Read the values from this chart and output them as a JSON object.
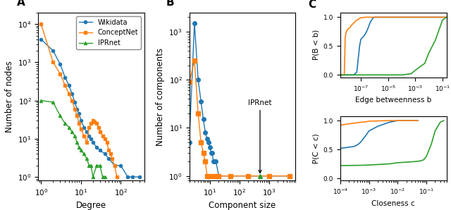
{
  "colors": {
    "wikidata": "#1f77b4",
    "conceptnet": "#ff7f0e",
    "iprnet": "#2ca02c"
  },
  "panel_A": {
    "wikidata_x": [
      1,
      2,
      3,
      4,
      5,
      6,
      7,
      8,
      9,
      10,
      12,
      14,
      16,
      18,
      20,
      25,
      30,
      40,
      50,
      70,
      100,
      150,
      200,
      300
    ],
    "wikidata_y": [
      4000,
      2000,
      900,
      400,
      250,
      150,
      90,
      60,
      45,
      30,
      20,
      15,
      12,
      10,
      8,
      6,
      5,
      4,
      3,
      2,
      2,
      1,
      1,
      1
    ],
    "conceptnet_x": [
      1,
      2,
      3,
      4,
      5,
      6,
      7,
      8,
      9,
      10,
      12,
      14,
      16,
      18,
      20,
      22,
      25,
      28,
      30,
      35,
      40,
      45,
      50,
      55,
      60,
      70,
      80
    ],
    "conceptnet_y": [
      10000,
      1000,
      500,
      250,
      150,
      100,
      60,
      40,
      25,
      18,
      12,
      8,
      20,
      25,
      30,
      28,
      25,
      20,
      15,
      12,
      10,
      8,
      5,
      4,
      3,
      2,
      1
    ],
    "iprnet_x": [
      1,
      2,
      3,
      4,
      5,
      6,
      7,
      8,
      9,
      10,
      12,
      14,
      16,
      18,
      20,
      25,
      30,
      35,
      40
    ],
    "iprnet_y": [
      100,
      90,
      40,
      25,
      20,
      15,
      12,
      8,
      6,
      5,
      4,
      3,
      2,
      2,
      1,
      2,
      2,
      1,
      1
    ]
  },
  "panel_B": {
    "wikidata_x": [
      2,
      3,
      4,
      5,
      6,
      7,
      8,
      9,
      10,
      11,
      12,
      13,
      14,
      15,
      16,
      20,
      50,
      200,
      1000,
      5000
    ],
    "wikidata_y": [
      5,
      1500,
      100,
      35,
      15,
      8,
      6,
      5,
      4,
      3,
      3,
      2,
      2,
      2,
      2,
      1,
      1,
      1,
      1,
      1
    ],
    "conceptnet_x": [
      2,
      3,
      4,
      5,
      6,
      7,
      8,
      10,
      15,
      20,
      50,
      200,
      1000,
      5000
    ],
    "conceptnet_y": [
      90,
      250,
      20,
      5,
      3,
      2,
      1,
      1,
      1,
      1,
      1,
      1,
      1,
      1
    ],
    "iprnet_x": [
      500
    ],
    "iprnet_y": [
      1
    ]
  },
  "panel_C_top": {
    "wikidata_x": [
      3e-09,
      3.5e-09,
      4e-09,
      5e-09,
      6e-09,
      8e-09,
      1e-08,
      2e-08,
      3e-08,
      5e-08,
      8e-08,
      1e-07,
      1.5e-07,
      2e-07,
      3e-07,
      5e-07,
      8e-07,
      1e-06,
      0.2
    ],
    "wikidata_y": [
      0.0,
      0.0,
      0.0,
      0.0,
      0.0,
      0.0,
      0.0,
      0.0,
      0.0,
      0.05,
      0.5,
      0.62,
      0.66,
      0.7,
      0.78,
      0.92,
      0.99,
      1.0,
      1.0
    ],
    "conceptnet_x": [
      3e-09,
      4e-09,
      5e-09,
      6e-09,
      7e-09,
      8e-09,
      1e-08,
      1.5e-08,
      2e-08,
      3e-08,
      4e-08,
      5e-08,
      7e-08,
      1e-07,
      2e-07,
      3e-07,
      5e-07,
      0.2
    ],
    "conceptnet_y": [
      0.0,
      0.0,
      0.0,
      0.0,
      0.65,
      0.73,
      0.78,
      0.82,
      0.86,
      0.9,
      0.93,
      0.95,
      0.97,
      0.99,
      1.0,
      1.0,
      1.0,
      1.0
    ],
    "iprnet_x": [
      3e-09,
      1e-06,
      5e-06,
      1e-05,
      5e-05,
      0.0001,
      0.0005,
      0.001,
      0.005,
      0.01,
      0.03,
      0.05,
      0.08,
      0.1,
      0.2
    ],
    "iprnet_y": [
      0.0,
      0.0,
      0.0,
      0.0,
      0.0,
      0.0,
      0.02,
      0.08,
      0.2,
      0.38,
      0.6,
      0.75,
      0.88,
      0.95,
      1.0
    ],
    "xlim": [
      3e-09,
      0.2
    ],
    "xlabel": "Edge betweenness b",
    "ylabel": "P(B < b)"
  },
  "panel_C_bottom": {
    "wikidata_x": [
      0.0001,
      0.00015,
      0.0002,
      0.0003,
      0.0004,
      0.0005,
      0.0006,
      0.0008,
      0.001,
      0.002,
      0.005,
      0.01,
      0.05
    ],
    "wikidata_y": [
      0.52,
      0.53,
      0.54,
      0.55,
      0.58,
      0.62,
      0.67,
      0.75,
      0.82,
      0.9,
      0.97,
      1.0,
      1.0
    ],
    "conceptnet_x": [
      0.0001,
      0.00015,
      0.0002,
      0.0003,
      0.0004,
      0.0005,
      0.0008,
      0.001,
      0.005,
      0.01,
      0.05
    ],
    "conceptnet_y": [
      0.92,
      0.935,
      0.945,
      0.955,
      0.965,
      0.97,
      0.98,
      0.99,
      1.0,
      1.0,
      1.0
    ],
    "iprnet_x": [
      0.0001,
      0.0005,
      0.001,
      0.005,
      0.01,
      0.02,
      0.04,
      0.06,
      0.08,
      0.1,
      0.15,
      0.2,
      0.3,
      0.4
    ],
    "iprnet_y": [
      0.22,
      0.225,
      0.23,
      0.25,
      0.27,
      0.28,
      0.29,
      0.3,
      0.32,
      0.38,
      0.6,
      0.82,
      0.97,
      1.0
    ],
    "xlim": [
      0.0001,
      0.5
    ],
    "xlabel": "Closeness c",
    "ylabel": "P(C < c)"
  }
}
